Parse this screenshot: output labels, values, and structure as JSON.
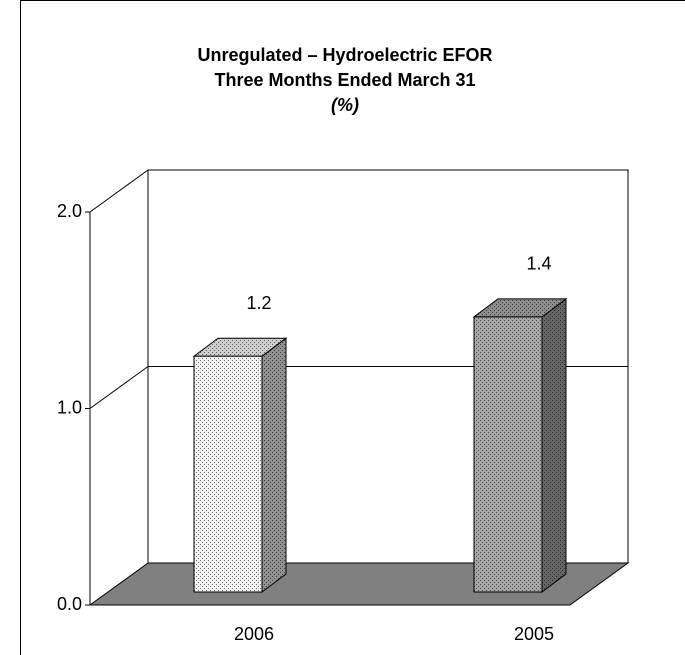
{
  "chart_data": {
    "type": "bar3d",
    "title": "Unregulated  –  Hydroelectric EFOR",
    "subtitle": "Three Months Ended March 31",
    "unit_label": "(%)",
    "categories": [
      "2006",
      "2005"
    ],
    "values": [
      1.2,
      1.4
    ],
    "colors": [
      "#f2f2f2",
      "#a6a6a6"
    ],
    "ylim": [
      0,
      2
    ],
    "yticks": [
      {
        "value": 0,
        "label": "0.0"
      },
      {
        "value": 1,
        "label": "1.0"
      },
      {
        "value": 2,
        "label": "2.0"
      }
    ],
    "grid": true
  }
}
